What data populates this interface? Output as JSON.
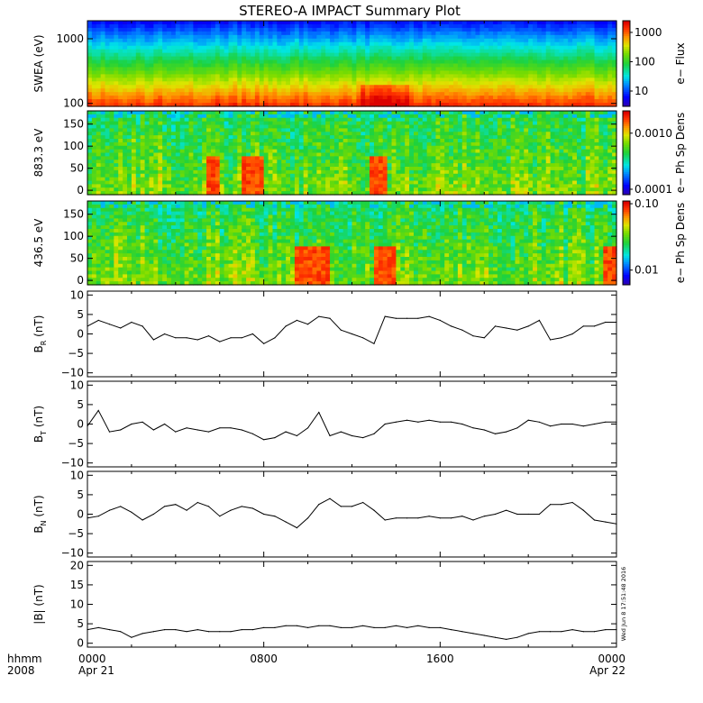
{
  "title": "STEREO-A IMPACT Summary Plot",
  "stamp": "Wed Jun  8 17:51:48 2016",
  "x_axis": {
    "row1_label": "hhmm",
    "row2_label": "2008",
    "ticks": [
      {
        "hour": 0,
        "label": "0000",
        "sub": "Apr 21"
      },
      {
        "hour": 8,
        "label": "0800",
        "sub": ""
      },
      {
        "hour": 16,
        "label": "1600",
        "sub": ""
      },
      {
        "hour": 24,
        "label": "0000",
        "sub": "Apr 22"
      }
    ],
    "range_hours": [
      0,
      24
    ]
  },
  "chart_data": [
    {
      "type": "heatmap",
      "ylabel": "SWEA (eV)",
      "yscale": "log",
      "ylim": [
        90,
        1900
      ],
      "yticks": [
        {
          "v": 100,
          "label": "100"
        },
        {
          "v": 1000,
          "label": "1000"
        }
      ],
      "colorbar": {
        "label": "e− Flux",
        "scale": "log",
        "range": [
          3,
          2500
        ],
        "ticks": [
          {
            "v": 10,
            "label": "10"
          },
          {
            "v": 100,
            "label": "100"
          },
          {
            "v": 1000,
            "label": "1000"
          }
        ]
      },
      "hot_intervals_hours": [
        [
          12.5,
          14.5
        ]
      ]
    },
    {
      "type": "heatmap",
      "ylabel": "883.3 eV",
      "yscale": "linear",
      "ylim": [
        -10,
        180
      ],
      "yticks": [
        {
          "v": 0,
          "label": "0"
        },
        {
          "v": 50,
          "label": "50"
        },
        {
          "v": 100,
          "label": "100"
        },
        {
          "v": 150,
          "label": "150"
        }
      ],
      "colorbar": {
        "label": "e− Ph Sp Dens",
        "scale": "log",
        "range": [
          8e-05,
          0.0025
        ],
        "ticks": [
          {
            "v": 0.0001,
            "label": "0.0001"
          },
          {
            "v": 0.001,
            "label": "0.0010"
          }
        ]
      },
      "hot_intervals_hours": [
        [
          5.5,
          6.0
        ],
        [
          7.0,
          8.0
        ],
        [
          12.8,
          13.5
        ]
      ]
    },
    {
      "type": "heatmap",
      "ylabel": "436.5 eV",
      "yscale": "linear",
      "ylim": [
        -10,
        180
      ],
      "yticks": [
        {
          "v": 0,
          "label": "0"
        },
        {
          "v": 50,
          "label": "50"
        },
        {
          "v": 100,
          "label": "100"
        },
        {
          "v": 150,
          "label": "150"
        }
      ],
      "colorbar": {
        "label": "e− Ph Sp Dens",
        "scale": "log",
        "range": [
          0.006,
          0.11
        ],
        "ticks": [
          {
            "v": 0.01,
            "label": "0.01"
          },
          {
            "v": 0.1,
            "label": "0.10"
          }
        ]
      },
      "hot_intervals_hours": [
        [
          9.5,
          11.0
        ],
        [
          13.0,
          14.0
        ],
        [
          23.5,
          24.0
        ]
      ]
    },
    {
      "type": "line",
      "ylabel_main": "B",
      "ylabel_sub": "R",
      "ylabel_unit": " (nT)",
      "ylim": [
        -11,
        11
      ],
      "yticks": [
        {
          "v": -10,
          "label": "−10"
        },
        {
          "v": -5,
          "label": "−5"
        },
        {
          "v": 0,
          "label": "0"
        },
        {
          "v": 5,
          "label": "5"
        },
        {
          "v": 10,
          "label": "10"
        }
      ],
      "x": [
        0,
        0.5,
        1,
        1.5,
        2,
        2.5,
        3,
        3.5,
        4,
        4.5,
        5,
        5.5,
        6,
        6.5,
        7,
        7.5,
        8,
        8.5,
        9,
        9.5,
        10,
        10.5,
        11,
        11.5,
        12,
        12.5,
        13,
        13.5,
        14,
        14.5,
        15,
        15.5,
        16,
        16.5,
        17,
        17.5,
        18,
        18.5,
        19,
        19.5,
        20,
        20.5,
        21,
        21.5,
        22,
        22.5,
        23,
        23.5,
        24
      ],
      "y": [
        2,
        3.5,
        2.5,
        1.5,
        3,
        2,
        -1.5,
        0,
        -1,
        -1,
        -1.5,
        -0.5,
        -2,
        -1,
        -1,
        0,
        -2.5,
        -1,
        2,
        3.5,
        2.5,
        4.5,
        4,
        1,
        0,
        -1,
        -2.5,
        4.5,
        4,
        4,
        4,
        4.5,
        3.5,
        2,
        1,
        -0.5,
        -1,
        2,
        1.5,
        1,
        2,
        3.5,
        -1.5,
        -1,
        0,
        2,
        2,
        3,
        3
      ]
    },
    {
      "type": "line",
      "ylabel_main": "B",
      "ylabel_sub": "T",
      "ylabel_unit": " (nT)",
      "ylim": [
        -11,
        11
      ],
      "yticks": [
        {
          "v": -10,
          "label": "−10"
        },
        {
          "v": -5,
          "label": "−5"
        },
        {
          "v": 0,
          "label": "0"
        },
        {
          "v": 5,
          "label": "5"
        },
        {
          "v": 10,
          "label": "10"
        }
      ],
      "x": [
        0,
        0.5,
        1,
        1.5,
        2,
        2.5,
        3,
        3.5,
        4,
        4.5,
        5,
        5.5,
        6,
        6.5,
        7,
        7.5,
        8,
        8.5,
        9,
        9.5,
        10,
        10.5,
        11,
        11.5,
        12,
        12.5,
        13,
        13.5,
        14,
        14.5,
        15,
        15.5,
        16,
        16.5,
        17,
        17.5,
        18,
        18.5,
        19,
        19.5,
        20,
        20.5,
        21,
        21.5,
        22,
        22.5,
        23,
        23.5,
        24
      ],
      "y": [
        -0.5,
        3.5,
        -2,
        -1.5,
        0,
        0.5,
        -1.5,
        0,
        -2,
        -1,
        -1.5,
        -2,
        -1,
        -1,
        -1.5,
        -2.5,
        -4,
        -3.5,
        -2,
        -3,
        -1,
        3,
        -3,
        -2,
        -3,
        -3.5,
        -2.5,
        0,
        0.5,
        1,
        0.5,
        1,
        0.5,
        0.5,
        0,
        -1,
        -1.5,
        -2.5,
        -2,
        -1,
        1,
        0.5,
        -0.5,
        0,
        0,
        -0.5,
        0,
        0.5,
        0.5
      ]
    },
    {
      "type": "line",
      "ylabel_main": "B",
      "ylabel_sub": "N",
      "ylabel_unit": " (nT)",
      "ylim": [
        -11,
        11
      ],
      "yticks": [
        {
          "v": -10,
          "label": "−10"
        },
        {
          "v": -5,
          "label": "−5"
        },
        {
          "v": 0,
          "label": "0"
        },
        {
          "v": 5,
          "label": "5"
        },
        {
          "v": 10,
          "label": "10"
        }
      ],
      "x": [
        0,
        0.5,
        1,
        1.5,
        2,
        2.5,
        3,
        3.5,
        4,
        4.5,
        5,
        5.5,
        6,
        6.5,
        7,
        7.5,
        8,
        8.5,
        9,
        9.5,
        10,
        10.5,
        11,
        11.5,
        12,
        12.5,
        13,
        13.5,
        14,
        14.5,
        15,
        15.5,
        16,
        16.5,
        17,
        17.5,
        18,
        18.5,
        19,
        19.5,
        20,
        20.5,
        21,
        21.5,
        22,
        22.5,
        23,
        23.5,
        24
      ],
      "y": [
        -1,
        -0.5,
        1,
        2,
        0.5,
        -1.5,
        0,
        2,
        2.5,
        1,
        3,
        2,
        -0.5,
        1,
        2,
        1.5,
        0,
        -0.5,
        -2,
        -3.5,
        -1,
        2.5,
        4,
        2,
        2,
        3,
        1,
        -1.5,
        -1,
        -1,
        -1,
        -0.5,
        -1,
        -1,
        -0.5,
        -1.5,
        -0.5,
        0,
        1,
        0,
        0,
        0,
        2.5,
        2.5,
        3,
        1,
        -1.5,
        -2,
        -2.5
      ]
    },
    {
      "type": "line",
      "ylabel_main": "|B|",
      "ylabel_sub": "",
      "ylabel_unit": " (nT)",
      "ylim": [
        -1,
        21
      ],
      "yticks": [
        {
          "v": 0,
          "label": "0"
        },
        {
          "v": 5,
          "label": "5"
        },
        {
          "v": 10,
          "label": "10"
        },
        {
          "v": 15,
          "label": "15"
        },
        {
          "v": 20,
          "label": "20"
        }
      ],
      "x": [
        0,
        0.5,
        1,
        1.5,
        2,
        2.5,
        3,
        3.5,
        4,
        4.5,
        5,
        5.5,
        6,
        6.5,
        7,
        7.5,
        8,
        8.5,
        9,
        9.5,
        10,
        10.5,
        11,
        11.5,
        12,
        12.5,
        13,
        13.5,
        14,
        14.5,
        15,
        15.5,
        16,
        16.5,
        17,
        17.5,
        18,
        18.5,
        19,
        19.5,
        20,
        20.5,
        21,
        21.5,
        22,
        22.5,
        23,
        23.5,
        24
      ],
      "y": [
        3.5,
        4,
        3.5,
        3,
        1.5,
        2.5,
        3,
        3.5,
        3.5,
        3,
        3.5,
        3,
        3,
        3,
        3.5,
        3.5,
        4,
        4,
        4.5,
        4.5,
        4,
        4.5,
        4.5,
        4,
        4,
        4.5,
        4,
        4,
        4.5,
        4,
        4.5,
        4,
        4,
        3.5,
        3,
        2.5,
        2,
        1.5,
        1,
        1.5,
        2.5,
        3,
        3,
        3,
        3.5,
        3,
        3,
        3.5,
        3.5
      ]
    }
  ]
}
